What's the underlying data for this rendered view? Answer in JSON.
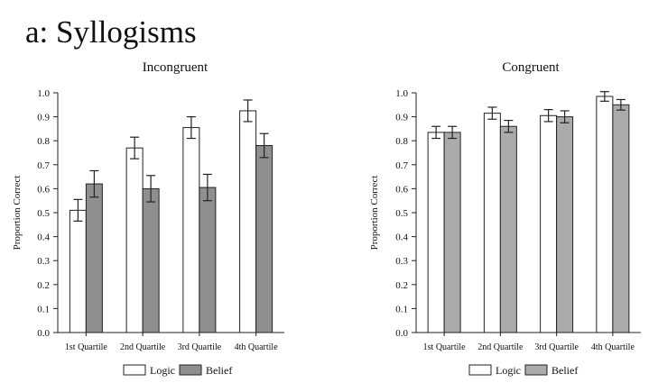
{
  "figure_title": "a: Syllogisms",
  "colors": {
    "logic": "#ffffff",
    "belief_incongruent": "#8f8f8f",
    "belief_congruent": "#ababab",
    "axis": "#222222"
  },
  "chart_data": [
    {
      "type": "bar",
      "title": "Incongruent",
      "xlabel": "",
      "ylabel": "Proportion Correct",
      "ylim": [
        0,
        1
      ],
      "yticks": [
        "0.0",
        "0.1",
        "0.2",
        "0.3",
        "0.4",
        "0.5",
        "0.6",
        "0.7",
        "0.8",
        "0.9",
        "1.0"
      ],
      "categories": [
        "1st Quartile",
        "2nd Quartile",
        "3rd Quartile",
        "4th Quartile"
      ],
      "series": [
        {
          "name": "Logic",
          "values": [
            0.51,
            0.77,
            0.855,
            0.925
          ],
          "error": [
            0.045,
            0.045,
            0.045,
            0.045
          ]
        },
        {
          "name": "Belief",
          "values": [
            0.62,
            0.6,
            0.605,
            0.78
          ],
          "error": [
            0.055,
            0.055,
            0.055,
            0.05
          ]
        }
      ],
      "grid": false,
      "legend_position": "bottom"
    },
    {
      "type": "bar",
      "title": "Congruent",
      "xlabel": "",
      "ylabel": "Proportion Correct",
      "ylim": [
        0,
        1
      ],
      "yticks": [
        "0.0",
        "0.1",
        "0.2",
        "0.3",
        "0.4",
        "0.5",
        "0.6",
        "0.7",
        "0.8",
        "0.9",
        "1.0"
      ],
      "categories": [
        "1st Quartile",
        "2nd Quartile",
        "3rd Quartile",
        "4th Quartile"
      ],
      "series": [
        {
          "name": "Logic",
          "values": [
            0.835,
            0.915,
            0.905,
            0.985
          ],
          "error": [
            0.025,
            0.025,
            0.025,
            0.02
          ]
        },
        {
          "name": "Belief",
          "values": [
            0.835,
            0.86,
            0.9,
            0.95
          ],
          "error": [
            0.025,
            0.025,
            0.025,
            0.022
          ]
        }
      ],
      "grid": false,
      "legend_position": "bottom"
    }
  ]
}
